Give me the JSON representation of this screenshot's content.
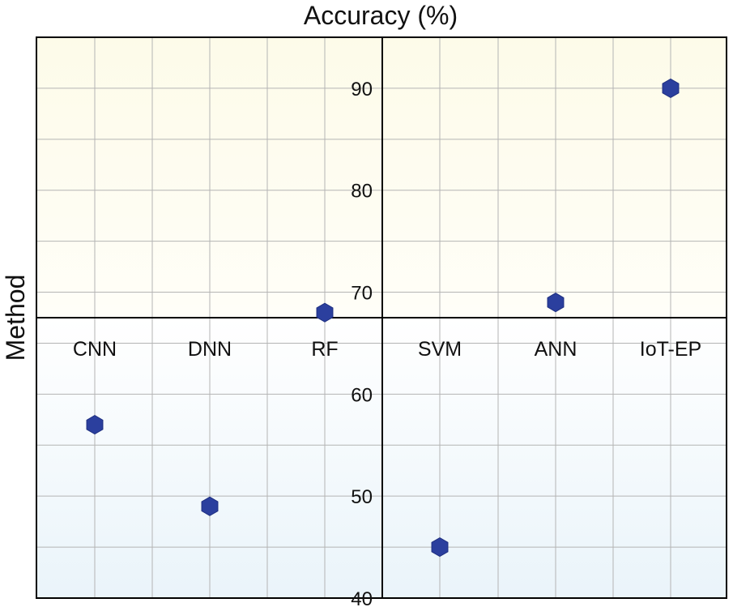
{
  "chart_data": {
    "type": "scatter",
    "title": "Accuracy (%)",
    "ylabel": "Method",
    "categories": [
      "CNN",
      "DNN",
      "RF",
      "SVM",
      "ANN",
      "IoT-EP"
    ],
    "values": [
      57,
      49,
      68,
      45,
      69,
      90
    ],
    "y_ticks": [
      40,
      50,
      60,
      70,
      80,
      90
    ],
    "ylim": [
      40,
      95
    ],
    "grid": true,
    "marker": "hexagon",
    "colors": {
      "marker": "#2b3f9e",
      "upper_bg": "#fdfcee",
      "lower_bg": "#eef6fb",
      "grid": "#b4b4b4",
      "axis": "#000000"
    }
  }
}
